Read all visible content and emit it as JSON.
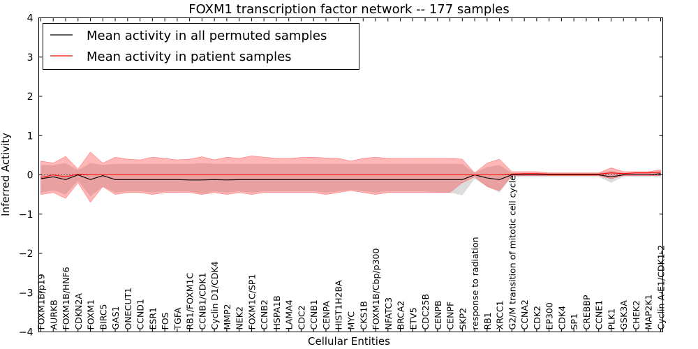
{
  "chart_data": {
    "type": "line",
    "title": "FOXM1 transcription factor network -- 177 samples",
    "xlabel": "Cellular Entities",
    "ylabel": "Inferred Activity",
    "ylim": [
      -4,
      4
    ],
    "yticks": [
      -4,
      -3,
      -2,
      -1,
      0,
      1,
      2,
      3,
      4
    ],
    "ytick_labels": [
      "−4",
      "−3",
      "−2",
      "−1",
      "0",
      "1",
      "2",
      "3",
      "4"
    ],
    "grid": false,
    "legend_position": "top-left",
    "categories": [
      "FOXM1B/p19",
      "AURKB",
      "FOXM1B/HNF6",
      "CDKN2A",
      "FOXM1",
      "BIRC5",
      "GAS1",
      "ONECUT1",
      "CCND1",
      "ESR1",
      "FOS",
      "TGFA",
      "RB1/FOXM1C",
      "CCNB1/CDK1",
      "Cyclin D1/CDK4",
      "MMP2",
      "NEK2",
      "FOXM1C/SP1",
      "CCNB2",
      "HSPA1B",
      "LAMA4",
      "CDC2",
      "CCNB1",
      "CENPA",
      "HIST1H2BA",
      "MYC",
      "CKS1B",
      "FOXM1B/Cbp/p300",
      "NFATC3",
      "BRCA2",
      "ETV5",
      "CDC25B",
      "CENPB",
      "CENPF",
      "SKP2",
      "response to radiation",
      "RB1",
      "XRCC1",
      "G2/M transition of mitotic cell cycle",
      "CCNA2",
      "CDK2",
      "EP300",
      "CDK4",
      "SP1",
      "CREBBP",
      "CCNE1",
      "PLK1",
      "GSK3A",
      "CHEK2",
      "MAP2K1",
      "Cyclin A-E1/CDK1-2"
    ],
    "series": [
      {
        "name": "Mean activity in all permuted samples",
        "color": "#000000",
        "values": [
          -0.1,
          -0.05,
          -0.12,
          0.0,
          -0.12,
          -0.02,
          -0.12,
          -0.12,
          -0.12,
          -0.12,
          -0.12,
          -0.12,
          -0.13,
          -0.13,
          -0.12,
          -0.13,
          -0.12,
          -0.12,
          -0.12,
          -0.12,
          -0.12,
          -0.12,
          -0.12,
          -0.12,
          -0.12,
          -0.12,
          -0.12,
          -0.12,
          -0.12,
          -0.12,
          -0.12,
          -0.12,
          -0.12,
          -0.12,
          -0.12,
          0.0,
          -0.08,
          -0.12,
          0.0,
          0.0,
          0.0,
          0.0,
          0.0,
          0.0,
          0.0,
          0.0,
          -0.05,
          0.0,
          0.0,
          0.0,
          0.03
        ],
        "band_low": [
          -0.45,
          -0.4,
          -0.5,
          -0.15,
          -0.55,
          -0.3,
          -0.45,
          -0.42,
          -0.42,
          -0.45,
          -0.42,
          -0.42,
          -0.42,
          -0.48,
          -0.42,
          -0.45,
          -0.42,
          -0.45,
          -0.42,
          -0.42,
          -0.42,
          -0.42,
          -0.42,
          -0.45,
          -0.42,
          -0.38,
          -0.42,
          -0.45,
          -0.42,
          -0.42,
          -0.42,
          -0.42,
          -0.45,
          -0.45,
          -0.52,
          -0.1,
          -0.3,
          -0.45,
          -0.05,
          -0.05,
          -0.05,
          -0.05,
          -0.05,
          -0.05,
          -0.05,
          -0.05,
          -0.2,
          -0.05,
          -0.05,
          -0.05,
          -0.05
        ],
        "band_high": [
          0.25,
          0.25,
          0.3,
          0.12,
          0.3,
          0.25,
          0.28,
          0.28,
          0.28,
          0.28,
          0.28,
          0.28,
          0.28,
          0.3,
          0.28,
          0.28,
          0.28,
          0.28,
          0.28,
          0.28,
          0.28,
          0.28,
          0.28,
          0.28,
          0.28,
          0.28,
          0.28,
          0.28,
          0.28,
          0.28,
          0.28,
          0.28,
          0.28,
          0.28,
          0.28,
          0.05,
          0.2,
          0.25,
          0.05,
          0.05,
          0.05,
          0.05,
          0.05,
          0.05,
          0.05,
          0.05,
          0.1,
          0.05,
          0.05,
          0.05,
          0.1
        ]
      },
      {
        "name": "Mean activity in patient samples",
        "color": "#ff0000",
        "values": [
          -0.07,
          0.0,
          -0.05,
          0.02,
          0.0,
          0.0,
          0.0,
          0.0,
          0.0,
          0.0,
          0.0,
          0.0,
          0.0,
          0.0,
          0.0,
          0.0,
          0.0,
          0.0,
          0.0,
          0.0,
          0.0,
          0.0,
          0.0,
          0.0,
          0.0,
          0.0,
          0.0,
          0.0,
          0.0,
          0.0,
          0.0,
          0.0,
          0.0,
          0.0,
          0.0,
          0.0,
          0.0,
          0.0,
          0.02,
          0.03,
          0.03,
          0.02,
          0.02,
          0.02,
          0.02,
          0.02,
          0.05,
          0.03,
          0.05,
          0.05,
          0.07
        ],
        "band_low": [
          -0.5,
          -0.45,
          -0.6,
          -0.2,
          -0.7,
          -0.3,
          -0.5,
          -0.45,
          -0.45,
          -0.5,
          -0.45,
          -0.45,
          -0.45,
          -0.5,
          -0.45,
          -0.5,
          -0.45,
          -0.5,
          -0.45,
          -0.45,
          -0.45,
          -0.45,
          -0.45,
          -0.5,
          -0.45,
          -0.4,
          -0.45,
          -0.5,
          -0.45,
          -0.45,
          -0.45,
          -0.45,
          -0.45,
          -0.45,
          -0.2,
          -0.05,
          -0.3,
          -0.4,
          -0.02,
          -0.02,
          -0.02,
          -0.02,
          -0.02,
          -0.02,
          -0.02,
          -0.02,
          -0.1,
          -0.02,
          -0.02,
          -0.02,
          -0.02
        ],
        "band_high": [
          0.35,
          0.3,
          0.47,
          0.15,
          0.58,
          0.3,
          0.45,
          0.4,
          0.38,
          0.45,
          0.42,
          0.38,
          0.4,
          0.46,
          0.38,
          0.45,
          0.42,
          0.48,
          0.45,
          0.42,
          0.42,
          0.44,
          0.45,
          0.43,
          0.42,
          0.35,
          0.42,
          0.45,
          0.42,
          0.42,
          0.42,
          0.42,
          0.42,
          0.42,
          0.4,
          0.05,
          0.3,
          0.4,
          0.08,
          0.08,
          0.08,
          0.05,
          0.05,
          0.05,
          0.05,
          0.05,
          0.18,
          0.08,
          0.08,
          0.08,
          0.13
        ]
      }
    ],
    "reference_line": {
      "y": 0,
      "style": "dotted"
    }
  }
}
